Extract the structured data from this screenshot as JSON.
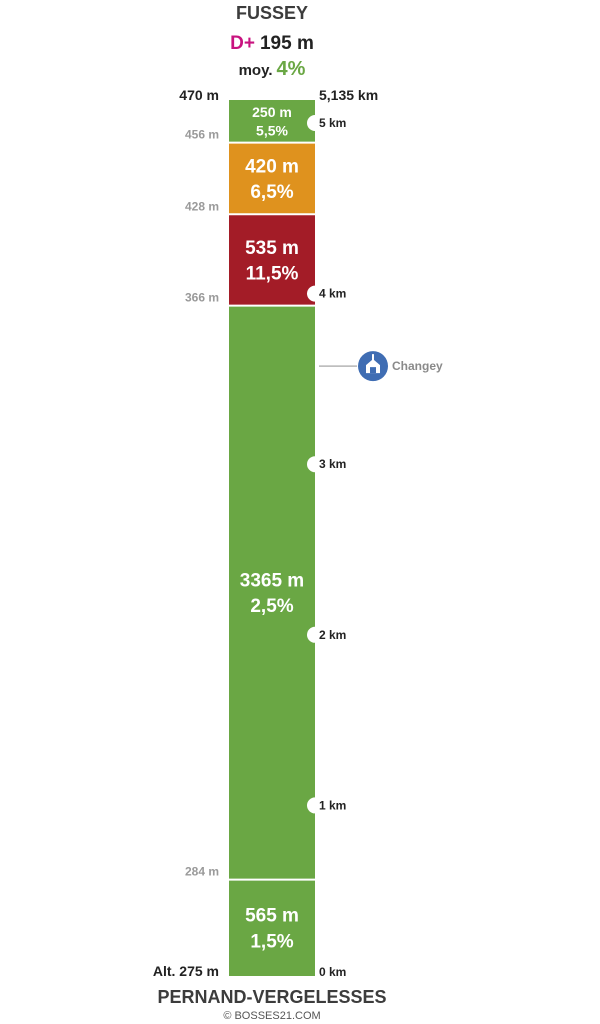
{
  "header": {
    "summit": "FUSSEY",
    "gain_prefix": "D+",
    "gain_value": "195 m",
    "avg_prefix": "moy.",
    "avg_value": "4%"
  },
  "footer": {
    "start": "PERNAND-VERGELESSES",
    "copyright": "© BOSSES21.COM"
  },
  "labels": {
    "top_altitude": "470 m",
    "total_distance": "5,135 km",
    "start_altitude": "Alt. 275 m"
  },
  "chart_data": {
    "type": "bar",
    "orientation": "vertical-stacked-profile",
    "total_km": 5.135,
    "segments": [
      {
        "length_label": "565 m",
        "grade_label": "1,5%",
        "length_m": 565,
        "grade": 1.5,
        "color": "#6aa744"
      },
      {
        "length_label": "3365 m",
        "grade_label": "2,5%",
        "length_m": 3365,
        "grade": 2.5,
        "color": "#6aa744"
      },
      {
        "length_label": "535 m",
        "grade_label": "11,5%",
        "length_m": 535,
        "grade": 11.5,
        "color": "#a31c27"
      },
      {
        "length_label": "420 m",
        "grade_label": "6,5%",
        "length_m": 420,
        "grade": 6.5,
        "color": "#df921e"
      },
      {
        "length_label": "250 m",
        "grade_label": "5,5%",
        "length_m": 250,
        "grade": 5.5,
        "color": "#6aa744"
      }
    ],
    "boundary_altitudes": [
      "284 m",
      "366 m",
      "428 m",
      "456 m"
    ],
    "km_ticks": [
      {
        "km": 0,
        "label": "0 km"
      },
      {
        "km": 1,
        "label": "1 km"
      },
      {
        "km": 2,
        "label": "2 km"
      },
      {
        "km": 3,
        "label": "3 km"
      },
      {
        "km": 4,
        "label": "4 km"
      },
      {
        "km": 5,
        "label": "5 km"
      }
    ],
    "poi": {
      "name": "Changey",
      "km": 3.575,
      "icon": "church-icon",
      "color": "#3f6db3"
    }
  },
  "colors": {
    "gain_prefix": "#c8137f",
    "avg_value": "#6aa744",
    "boundary_label": "#9a9a9a",
    "poi_label": "#8a8a8a"
  }
}
